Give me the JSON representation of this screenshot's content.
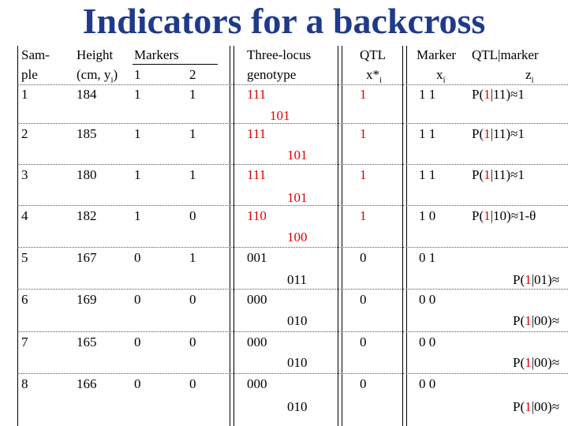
{
  "title": "Indicators for a backcross",
  "headers": {
    "sample": [
      "Sam-",
      "ple"
    ],
    "height": [
      "Height",
      "(cm, y",
      "i",
      ")"
    ],
    "markers": "Markers",
    "marker1": "1",
    "marker2": "2",
    "three_locus": [
      "Three-locus",
      "genotype"
    ],
    "qtl": [
      "QTL",
      "x*",
      "i"
    ],
    "marker_col": [
      "Marker",
      "x",
      "i"
    ],
    "qtl_marker": [
      "QTL|marker",
      "z",
      "i"
    ]
  },
  "rows": [
    {
      "sample": "1",
      "height": "184",
      "m1": "1",
      "m2": "1",
      "g1": "111",
      "g2": "101",
      "qtl": "1",
      "marker": "1 1",
      "prob_pre": "P(",
      "prob_red": "1",
      "prob_post": "|11)≈1"
    },
    {
      "sample": "2",
      "height": "185",
      "m1": "1",
      "m2": "1",
      "g1": "111",
      "g2": "101",
      "qtl": "1",
      "marker": "1 1",
      "prob_pre": "P(",
      "prob_red": "1",
      "prob_post": "|11)≈1"
    },
    {
      "sample": "3",
      "height": "180",
      "m1": "1",
      "m2": "1",
      "g1": "111",
      "g2": "101",
      "qtl": "1",
      "marker": "1 1",
      "prob_pre": "P(",
      "prob_red": "1",
      "prob_post": "|11)≈1"
    },
    {
      "sample": "4",
      "height": "182",
      "m1": "1",
      "m2": "0",
      "g1": "110",
      "g2": "100",
      "qtl": "1",
      "marker": "1 0",
      "prob_pre": "P(",
      "prob_red": "1",
      "prob_post": "|10)≈1-θ"
    },
    {
      "sample": "5",
      "height": "167",
      "m1": "0",
      "m2": "1",
      "g1": "001",
      "g2": "011",
      "qtl": "0",
      "marker": "0 1",
      "prob_pre": "P(",
      "prob_red": "1",
      "prob_post": "|01)≈"
    },
    {
      "sample": "6",
      "height": "169",
      "m1": "0",
      "m2": "0",
      "g1": "000",
      "g2": "010",
      "qtl": "0",
      "marker": "0 0",
      "prob_pre": "P(",
      "prob_red": "1",
      "prob_post": "|00)≈"
    },
    {
      "sample": "7",
      "height": "165",
      "m1": "0",
      "m2": "0",
      "g1": "000",
      "g2": "010",
      "qtl": "0",
      "marker": "0 0",
      "prob_pre": "P(",
      "prob_red": "1",
      "prob_post": "|00)≈"
    },
    {
      "sample": "8",
      "height": "166",
      "m1": "0",
      "m2": "0",
      "g1": "000",
      "g2": "010",
      "qtl": "0",
      "marker": "0 0",
      "prob_pre": "P(",
      "prob_red": "1",
      "prob_post": "|00)≈"
    }
  ]
}
